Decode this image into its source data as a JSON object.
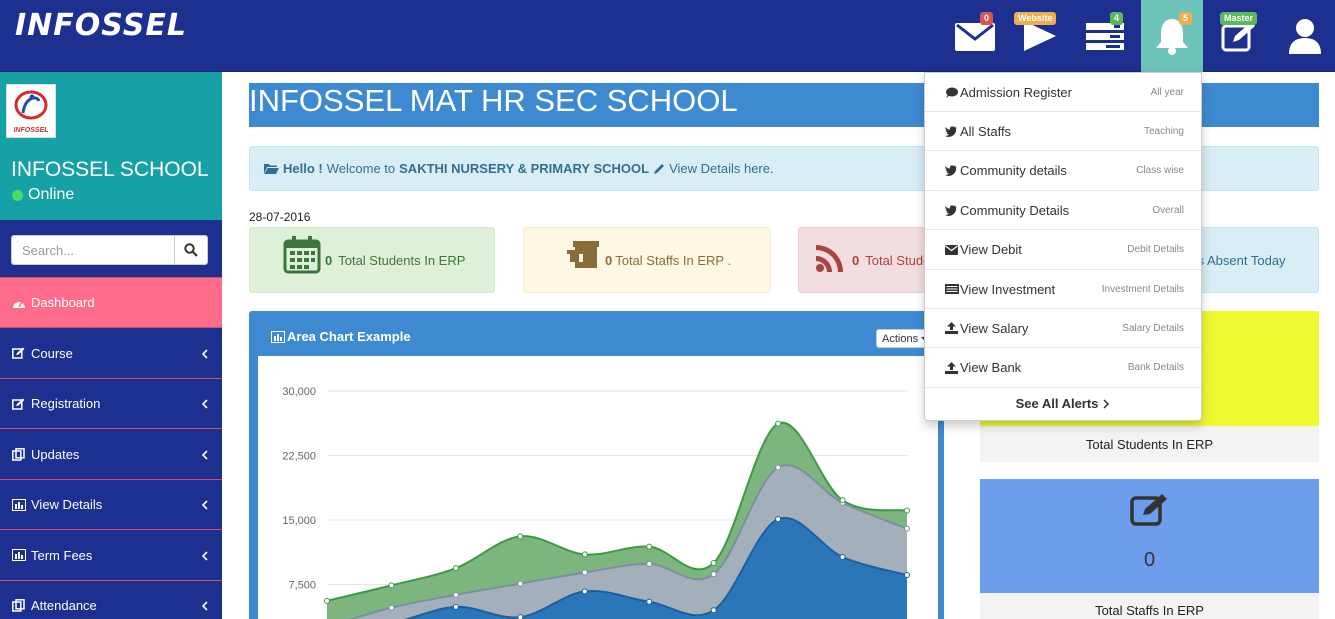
{
  "header": {
    "brand": "INFOSSEL",
    "icons": [
      {
        "name": "mail",
        "badge": "0",
        "badge_color": "#d9534f"
      },
      {
        "name": "website",
        "badge": "Website",
        "badge_color": "#f0ad4e"
      },
      {
        "name": "tasks",
        "badge": "4",
        "badge_color": "#5cb85c"
      },
      {
        "name": "bell",
        "badge": "5",
        "badge_color": "#f0ad4e"
      },
      {
        "name": "master",
        "badge": "Master",
        "badge_color": "#5cb85c"
      },
      {
        "name": "user",
        "badge": ""
      }
    ]
  },
  "sidebar": {
    "logo_text": "INFOSSEL",
    "school_name": "INFOSSEL SCHOOL",
    "status": "Online",
    "search_placeholder": "Search...",
    "items": [
      {
        "label": "Dashboard",
        "icon": "dashboard-icon",
        "active": true
      },
      {
        "label": "Course",
        "icon": "edit-icon"
      },
      {
        "label": "Registration",
        "icon": "edit-icon"
      },
      {
        "label": "Updates",
        "icon": "copy-icon"
      },
      {
        "label": "View Details",
        "icon": "bar-chart-icon"
      },
      {
        "label": "Term Fees",
        "icon": "bar-chart-icon"
      },
      {
        "label": "Attendance",
        "icon": "copy-icon"
      }
    ]
  },
  "main": {
    "title": "INFOSSEL MAT HR SEC SCHOOL",
    "welcome": {
      "hello": "Hello !",
      "text1": "Welcome to",
      "school": "SAKTHI NURSERY & PRIMARY SCHOOL",
      "text2": "View Details here."
    },
    "date": "28-07-2016",
    "stats": [
      {
        "value": "0",
        "label": "Total Students In ERP",
        "bg": "#dff0d8",
        "color": "#3c763d"
      },
      {
        "value": "0",
        "label": "Total Staffs In ERP .",
        "bg": "#fcf8e3",
        "color": "#8a6d3b"
      },
      {
        "value": "0",
        "label": "Total Stude",
        "bg": "#f2dede",
        "color": "#a94442"
      },
      {
        "value": "",
        "label": "fs Absent Today",
        "bg": "#d9edf7",
        "color": "#31708f"
      }
    ],
    "chart_panel": {
      "title": "Area Chart Example",
      "actions": "Actions"
    },
    "cards": [
      {
        "label": "Total Students In ERP"
      },
      {
        "value": "0",
        "label": "Total Staffs In ERP"
      }
    ]
  },
  "chart_data": {
    "type": "area",
    "y_ticks": [
      "30,000",
      "22,500",
      "15,000",
      "7,500"
    ],
    "ylim": [
      0,
      30000
    ],
    "series": [
      {
        "color": "#2a76b8",
        "values": [
          2200,
          3000,
          4900,
          3700,
          6700,
          5500,
          4500,
          15100,
          10700,
          8600
        ]
      },
      {
        "color": "#a3b0bb",
        "values": [
          2600,
          4800,
          6300,
          7600,
          8900,
          9900,
          8700,
          21100,
          17000,
          14000
        ]
      },
      {
        "color": "#7cb57e",
        "values": [
          5600,
          7400,
          9400,
          13100,
          11000,
          11900,
          10000,
          26200,
          17300,
          16100
        ]
      }
    ]
  },
  "alerts": {
    "items": [
      {
        "icon": "comment-icon",
        "label": "Admission Register",
        "side": "All year"
      },
      {
        "icon": "twitter-icon",
        "label": "All Staffs",
        "side": "Teaching"
      },
      {
        "icon": "twitter-icon",
        "label": "Community details",
        "side": "Class wise"
      },
      {
        "icon": "twitter-icon",
        "label": "Community Details",
        "side": "Overall"
      },
      {
        "icon": "envelope-icon",
        "label": "View Debit",
        "side": "Debit Details"
      },
      {
        "icon": "money-icon",
        "label": "View Investment",
        "side": "Investment Details"
      },
      {
        "icon": "upload-icon",
        "label": "View Salary",
        "side": "Salary Details"
      },
      {
        "icon": "upload-icon",
        "label": "View Bank",
        "side": "Bank Details"
      }
    ],
    "footer": "See All Alerts"
  }
}
